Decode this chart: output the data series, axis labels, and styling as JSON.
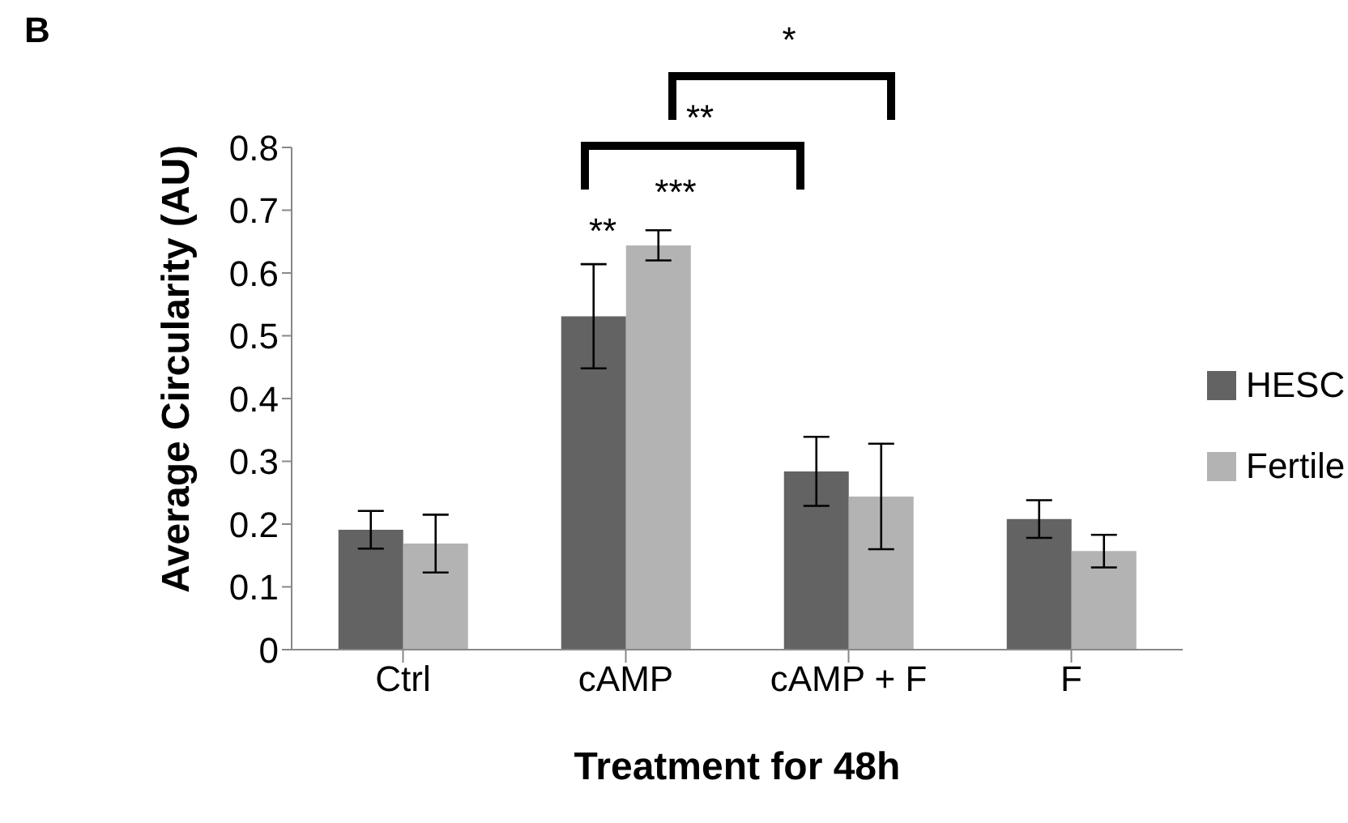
{
  "chart_data": {
    "type": "bar",
    "xlabel": "Treatment for 48h",
    "ylabel": "Average Circularity (AU)",
    "categories": [
      "Ctrl",
      "cAMP",
      "cAMP + F",
      "F"
    ],
    "series": [
      {
        "name": "HESC",
        "color": "#636363",
        "values": [
          0.191,
          0.531,
          0.284,
          0.208
        ],
        "errors": [
          0.03,
          0.083,
          0.055,
          0.03
        ]
      },
      {
        "name": "Fertile",
        "color": "#b3b3b3",
        "values": [
          0.169,
          0.644,
          0.244,
          0.157
        ],
        "errors": [
          0.046,
          0.024,
          0.084,
          0.026
        ]
      }
    ],
    "ylim": [
      0,
      0.8
    ],
    "yticks": [
      0,
      0.1,
      0.2,
      0.3,
      0.4,
      0.5,
      0.6,
      0.7,
      0.8
    ],
    "grid": false,
    "legend": "right",
    "annotations": [
      "B",
      "*",
      "**",
      "***",
      "**"
    ]
  }
}
